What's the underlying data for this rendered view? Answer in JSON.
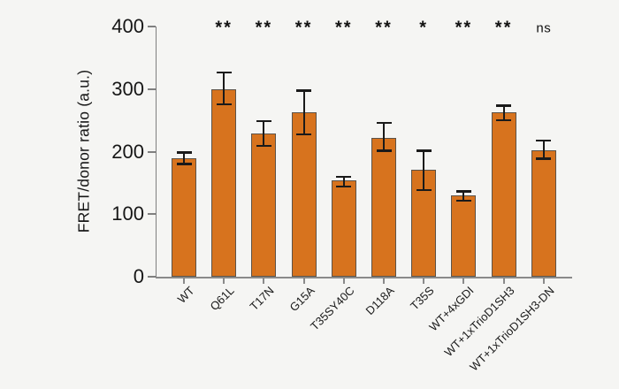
{
  "figure": {
    "background_color": "#f5f5f3",
    "bar_color": "#d7731e",
    "bar_border_color": "#5d5348",
    "error_bar_color": "#1a1a1a",
    "axis_color": "#8a8a8a",
    "text_color": "#161616"
  },
  "chart_data": {
    "type": "bar",
    "title": "",
    "xlabel": "",
    "ylabel": "FRET/donor ratio (a.u.)",
    "ylim": [
      0,
      400
    ],
    "yticks": [
      0,
      100,
      200,
      300,
      400
    ],
    "grid": false,
    "legend": null,
    "categories": [
      "WT",
      "Q61L",
      "T17N",
      "G15A",
      "T35SY40C",
      "D118A",
      "T35S",
      "WT+4xGDI",
      "WT+1xTrioD1SH3",
      "WT+1xTrioD1SH3-DN"
    ],
    "values": [
      188,
      298,
      228,
      262,
      152,
      220,
      169,
      129,
      262,
      201
    ],
    "error_up": [
      11,
      29,
      21,
      36,
      8,
      26,
      33,
      8,
      12,
      17
    ],
    "error_down": [
      8,
      23,
      19,
      35,
      8,
      19,
      31,
      8,
      12,
      13
    ],
    "significance": [
      "",
      "**",
      "**",
      "**",
      "**",
      "**",
      "*",
      "**",
      "**",
      "ns"
    ]
  }
}
